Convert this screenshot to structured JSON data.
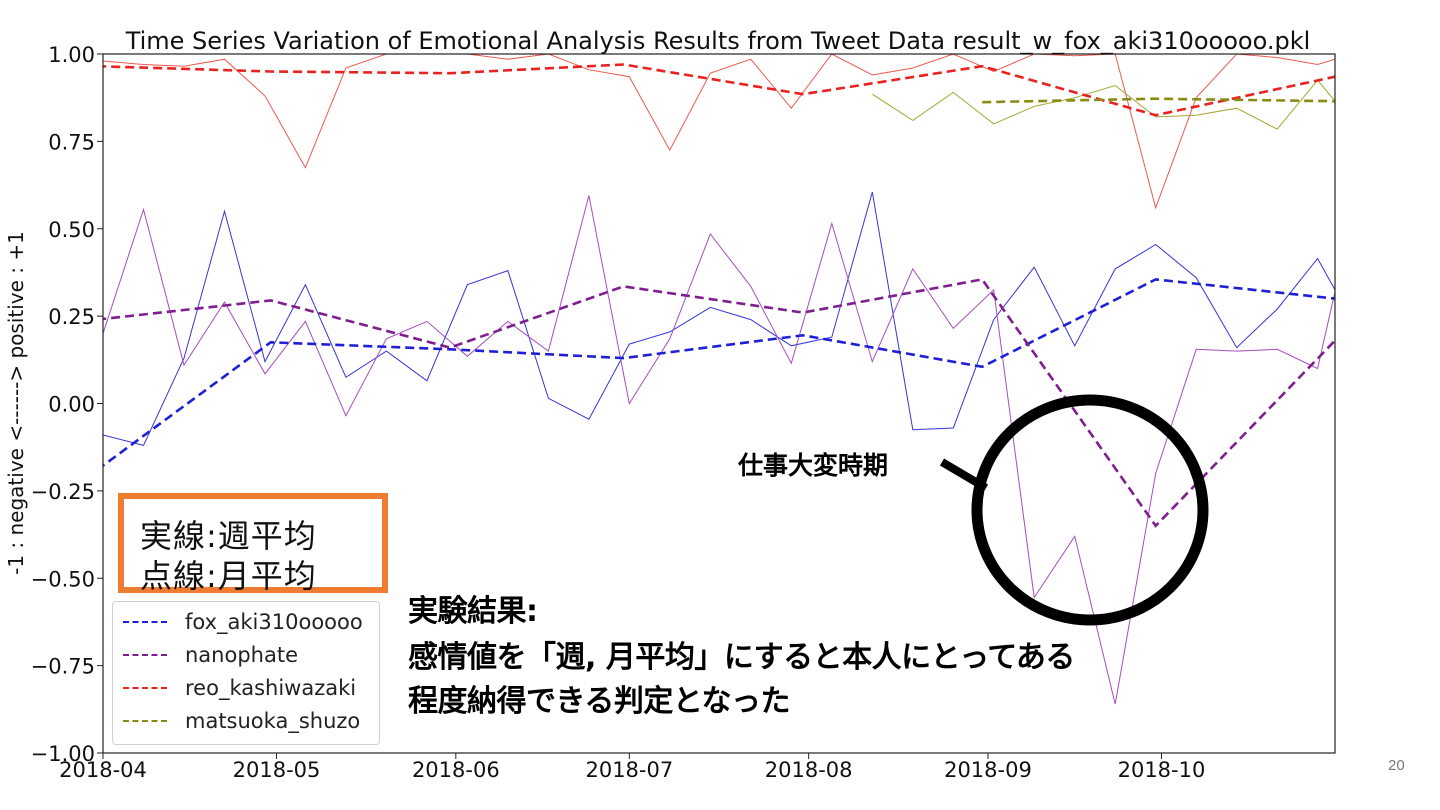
{
  "chart_data": {
    "type": "line",
    "title": "Time Series Variation of Emotional Analysis Results from Tweet Data result_w_fox_aki310ooooo.pkl",
    "ylabel": "-1 : negative <------> positive : +1",
    "xlabel": "",
    "ylim": [
      -1.0,
      1.0
    ],
    "xlim": [
      "2018-04-01",
      "2018-10-31"
    ],
    "yticks": [
      "1.00",
      "0.75",
      "0.50",
      "0.25",
      "0.00",
      "−0.25",
      "−0.50",
      "−0.75",
      "−1.00"
    ],
    "ytick_values": [
      1.0,
      0.75,
      0.5,
      0.25,
      0.0,
      -0.25,
      -0.5,
      -0.75,
      -1.0
    ],
    "xticks": [
      "2018-04",
      "2018-05",
      "2018-06",
      "2018-07",
      "2018-08",
      "2018-09",
      "2018-10"
    ],
    "xtick_values": [
      "2018-04-01",
      "2018-05-01",
      "2018-06-01",
      "2018-07-01",
      "2018-08-01",
      "2018-09-01",
      "2018-10-01"
    ],
    "grid": false,
    "legend_position": "lower-left",
    "series": [
      {
        "name": "fox_aki310ooooo",
        "kind": "monthly",
        "color": "#1f1fd6",
        "x": [
          "2018-03-31",
          "2018-04-30",
          "2018-05-31",
          "2018-06-30",
          "2018-07-31",
          "2018-08-31",
          "2018-09-30",
          "2018-10-31"
        ],
        "values": [
          -0.19,
          0.175,
          0.155,
          0.13,
          0.195,
          0.105,
          0.355,
          0.3
        ]
      },
      {
        "name": "nanophate",
        "kind": "monthly",
        "color": "#7f1f8f",
        "x": [
          "2018-03-31",
          "2018-04-30",
          "2018-05-31",
          "2018-06-30",
          "2018-07-31",
          "2018-08-31",
          "2018-09-30",
          "2018-10-31"
        ],
        "values": [
          0.24,
          0.295,
          0.16,
          0.335,
          0.26,
          0.355,
          -0.35,
          0.18
        ]
      },
      {
        "name": "reo_kashiwazaki",
        "kind": "monthly",
        "color": "#e8231f",
        "x": [
          "2018-03-31",
          "2018-04-30",
          "2018-05-31",
          "2018-06-30",
          "2018-07-31",
          "2018-08-31",
          "2018-09-30",
          "2018-10-31"
        ],
        "values": [
          0.965,
          0.95,
          0.945,
          0.97,
          0.885,
          0.965,
          0.825,
          0.935
        ]
      },
      {
        "name": "matsuoka_shuzo",
        "kind": "monthly",
        "color": "#8a8a14",
        "x": [
          "2018-08-31",
          "2018-09-30",
          "2018-10-31"
        ],
        "values": [
          0.862,
          0.872,
          0.865
        ]
      },
      {
        "name": "",
        "kind": "weekly",
        "color": "#3535d8",
        "x": [
          "2018-04-01",
          "2018-04-08",
          "2018-04-15",
          "2018-04-22",
          "2018-04-29",
          "2018-05-06",
          "2018-05-13",
          "2018-05-20",
          "2018-05-27",
          "2018-06-03",
          "2018-06-10",
          "2018-06-17",
          "2018-06-24",
          "2018-07-01",
          "2018-07-08",
          "2018-07-15",
          "2018-07-22",
          "2018-07-29",
          "2018-08-05",
          "2018-08-12",
          "2018-08-19",
          "2018-08-26",
          "2018-09-02",
          "2018-09-09",
          "2018-09-16",
          "2018-09-23",
          "2018-09-30",
          "2018-10-07",
          "2018-10-14",
          "2018-10-21",
          "2018-10-28",
          "2018-10-31"
        ],
        "values": [
          -0.09,
          -0.12,
          0.13,
          0.55,
          0.12,
          0.34,
          0.075,
          0.15,
          0.065,
          0.34,
          0.38,
          0.015,
          -0.045,
          0.17,
          0.205,
          0.275,
          0.24,
          0.165,
          0.19,
          0.605,
          -0.075,
          -0.07,
          0.24,
          0.39,
          0.165,
          0.385,
          0.455,
          0.36,
          0.16,
          0.27,
          0.415,
          0.325
        ]
      },
      {
        "name": "",
        "kind": "weekly",
        "color": "#a64dbf",
        "x": [
          "2018-04-01",
          "2018-04-08",
          "2018-04-15",
          "2018-04-22",
          "2018-04-29",
          "2018-05-06",
          "2018-05-13",
          "2018-05-20",
          "2018-05-27",
          "2018-06-03",
          "2018-06-10",
          "2018-06-17",
          "2018-06-24",
          "2018-07-01",
          "2018-07-08",
          "2018-07-15",
          "2018-07-22",
          "2018-07-29",
          "2018-08-05",
          "2018-08-12",
          "2018-08-19",
          "2018-08-26",
          "2018-09-02",
          "2018-09-09",
          "2018-09-16",
          "2018-09-23",
          "2018-09-30",
          "2018-10-07",
          "2018-10-14",
          "2018-10-21",
          "2018-10-28",
          "2018-10-31"
        ],
        "values": [
          0.2,
          0.555,
          0.11,
          0.29,
          0.085,
          0.235,
          -0.035,
          0.185,
          0.235,
          0.135,
          0.235,
          0.15,
          0.595,
          0.0,
          0.185,
          0.485,
          0.335,
          0.115,
          0.515,
          0.12,
          0.385,
          0.215,
          0.325,
          -0.555,
          -0.38,
          -0.86,
          -0.2,
          0.155,
          0.15,
          0.155,
          0.1,
          0.32
        ]
      },
      {
        "name": "",
        "kind": "weekly",
        "color": "#ec5b50",
        "x": [
          "2018-04-01",
          "2018-04-08",
          "2018-04-15",
          "2018-04-22",
          "2018-04-29",
          "2018-05-06",
          "2018-05-13",
          "2018-05-20",
          "2018-05-27",
          "2018-06-03",
          "2018-06-10",
          "2018-06-17",
          "2018-06-24",
          "2018-07-01",
          "2018-07-08",
          "2018-07-15",
          "2018-07-22",
          "2018-07-29",
          "2018-08-05",
          "2018-08-12",
          "2018-08-19",
          "2018-08-26",
          "2018-09-02",
          "2018-09-09",
          "2018-09-16",
          "2018-09-23",
          "2018-09-30",
          "2018-10-07",
          "2018-10-14",
          "2018-10-21",
          "2018-10-28",
          "2018-10-31"
        ],
        "values": [
          0.98,
          0.97,
          0.965,
          0.985,
          0.88,
          0.675,
          0.96,
          1.0,
          1.0,
          1.0,
          0.985,
          1.0,
          0.955,
          0.935,
          0.725,
          0.945,
          0.985,
          0.845,
          1.0,
          0.94,
          0.96,
          1.0,
          0.95,
          1.0,
          0.995,
          1.0,
          0.56,
          0.875,
          1.0,
          0.99,
          0.97,
          0.985
        ]
      },
      {
        "name": "",
        "kind": "weekly",
        "color": "#a6a630",
        "x": [
          "2018-08-12",
          "2018-08-19",
          "2018-08-26",
          "2018-09-02",
          "2018-09-09",
          "2018-09-16",
          "2018-09-23",
          "2018-09-30",
          "2018-10-07",
          "2018-10-14",
          "2018-10-21",
          "2018-10-28",
          "2018-10-31"
        ],
        "values": [
          0.885,
          0.81,
          0.89,
          0.8,
          0.85,
          0.875,
          0.91,
          0.82,
          0.825,
          0.845,
          0.785,
          0.925,
          0.865
        ]
      }
    ],
    "annotations": [
      "仕事大変時期"
    ]
  },
  "note": {
    "line1": "実線:週平均",
    "line2": "点線:月平均",
    "border_color": "#ee7d31"
  },
  "result": {
    "line1": "実験結果:",
    "line2": "感情値を「週, 月平均」にすると本人にとってある",
    "line3": "程度納得できる判定となった"
  },
  "annotation_label": "仕事大変時期",
  "page_number": "20"
}
